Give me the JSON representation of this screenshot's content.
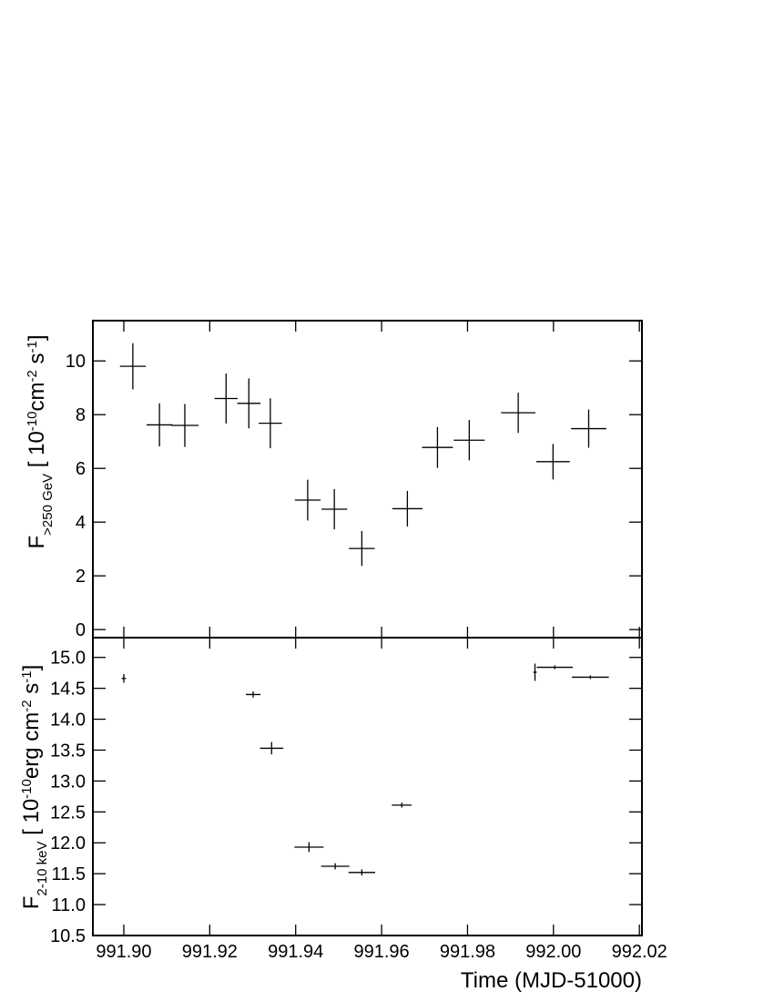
{
  "chart_data": [
    {
      "type": "errorbar",
      "ylabel_parts": [
        {
          "text": "F"
        },
        {
          "text": ">250 GeV",
          "sub": true
        },
        {
          "text": " [ 10"
        },
        {
          "text": "-10",
          "sup": true
        },
        {
          "text": "cm"
        },
        {
          "text": "-2",
          "sup": true
        },
        {
          "text": " s"
        },
        {
          "text": "-1",
          "sup": true
        },
        {
          "text": "]"
        }
      ],
      "ylim": [
        -0.3,
        11.5
      ],
      "yticks": [
        0,
        2,
        4,
        6,
        8,
        10
      ],
      "series": [
        {
          "color": "#000000",
          "x": [
            991.9021,
            991.9083,
            991.9142,
            991.9238,
            991.9291,
            991.9341,
            991.9428,
            991.949,
            991.9554,
            991.966,
            991.973,
            991.9804,
            991.9918,
            991.9999,
            992.0082
          ],
          "x_err": [
            0.003,
            0.003,
            0.0032,
            0.0027,
            0.0027,
            0.0027,
            0.003,
            0.003,
            0.003,
            0.0035,
            0.0036,
            0.0036,
            0.004,
            0.0039,
            0.0041
          ],
          "values": [
            9.8,
            7.62,
            7.6,
            8.6,
            8.42,
            7.68,
            4.82,
            4.48,
            3.02,
            4.5,
            6.78,
            7.05,
            8.07,
            6.25,
            7.48
          ],
          "errors": [
            0.86,
            0.8,
            0.8,
            0.93,
            0.93,
            0.93,
            0.76,
            0.75,
            0.65,
            0.66,
            0.76,
            0.75,
            0.75,
            0.66,
            0.71
          ]
        }
      ]
    },
    {
      "type": "errorbar",
      "xlabel": "Time (MJD-51000)",
      "ylabel_parts": [
        {
          "text": "F"
        },
        {
          "text": "2-10 keV",
          "sub": true
        },
        {
          "text": " [ 10"
        },
        {
          "text": "-10",
          "sup": true
        },
        {
          "text": "erg cm"
        },
        {
          "text": "-2",
          "sup": true
        },
        {
          "text": " s"
        },
        {
          "text": "-1",
          "sup": true
        },
        {
          "text": "]"
        }
      ],
      "xlim": [
        991.8928,
        992.0206
      ],
      "xticks": [
        {
          "value": 991.9,
          "label": "991.90"
        },
        {
          "value": 991.92,
          "label": "991.92"
        },
        {
          "value": 991.94,
          "label": "991.94"
        },
        {
          "value": 991.96,
          "label": "991.96"
        },
        {
          "value": 991.98,
          "label": "991.98"
        },
        {
          "value": 992.0,
          "label": "992.00"
        },
        {
          "value": 992.02,
          "label": "992.02"
        }
      ],
      "ylim": [
        10.5,
        15.32
      ],
      "yticks": [
        {
          "value": 10.5,
          "label": "10.5"
        },
        {
          "value": 11,
          "label": "11.0"
        },
        {
          "value": 11.5,
          "label": "11.5"
        },
        {
          "value": 12,
          "label": "12.0"
        },
        {
          "value": 12.5,
          "label": "12.5"
        },
        {
          "value": 13,
          "label": "13.0"
        },
        {
          "value": 13.5,
          "label": "13.5"
        },
        {
          "value": 14,
          "label": "14.0"
        },
        {
          "value": 14.5,
          "label": "14.5"
        },
        {
          "value": 15,
          "label": "15.0"
        }
      ],
      "series": [
        {
          "color": "#000000",
          "x": [
            991.9,
            991.9301,
            991.9344,
            991.9431,
            991.9492,
            991.9554,
            991.9647,
            991.9957,
            992.0003,
            992.0086
          ],
          "x_err": [
            0.0005,
            0.0017,
            0.0027,
            0.0034,
            0.0033,
            0.0031,
            0.0023,
            0.0004,
            0.0042,
            0.0043
          ],
          "values": [
            14.66,
            14.4,
            13.53,
            11.93,
            11.62,
            11.52,
            12.61,
            14.76,
            14.84,
            14.68
          ],
          "errors": [
            0.07,
            0.05,
            0.1,
            0.08,
            0.05,
            0.05,
            0.04,
            0.14,
            0.03,
            0.03
          ]
        }
      ]
    }
  ]
}
